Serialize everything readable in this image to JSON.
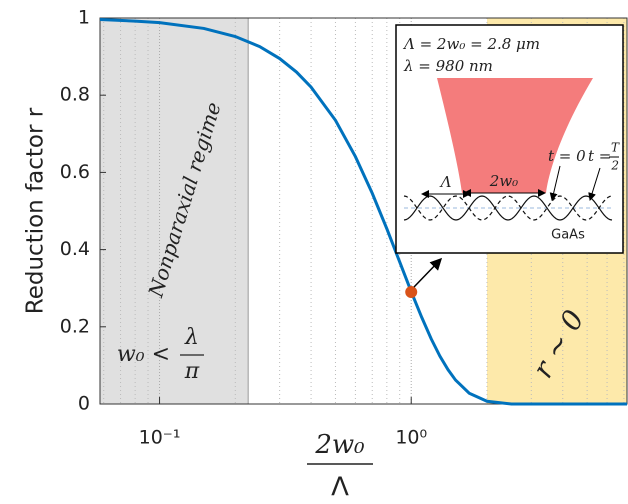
{
  "chart_data": {
    "type": "line",
    "ylabel": "Reduction factor r",
    "xlabel": {
      "numerator": "2w₀",
      "denominator": "Λ"
    },
    "x": [
      0.058,
      0.08,
      0.1,
      0.15,
      0.2,
      0.25,
      0.3,
      0.35,
      0.4,
      0.5,
      0.6,
      0.7,
      0.8,
      0.9,
      1.0,
      1.1,
      1.2,
      1.3,
      1.4,
      1.5,
      1.7,
      2.0,
      2.5,
      3,
      5,
      7.2
    ],
    "series": [
      {
        "color": "#0072bd",
        "values": [
          0.996,
          0.992,
          0.988,
          0.973,
          0.952,
          0.926,
          0.895,
          0.86,
          0.821,
          0.735,
          0.641,
          0.546,
          0.454,
          0.368,
          0.291,
          0.225,
          0.169,
          0.124,
          0.089,
          0.062,
          0.028,
          0.007,
          0,
          0,
          0,
          0
        ]
      }
    ],
    "marker": {
      "x": 1,
      "y": 0.29,
      "color": "#d95319"
    },
    "xscale": "log",
    "xlim": [
      0.058,
      7.2
    ],
    "ylim": [
      0,
      1
    ],
    "xticks": [
      {
        "value": 0.1,
        "label": "10⁻¹"
      },
      {
        "value": 1,
        "label": "10⁰"
      }
    ],
    "xminor": [
      0.06,
      0.07,
      0.08,
      0.09,
      0.2,
      0.3,
      0.4,
      0.5,
      0.6,
      0.7,
      0.8,
      0.9,
      2,
      3,
      4,
      5,
      6,
      7
    ],
    "yticks": [
      0,
      0.2,
      0.4,
      0.6,
      0.8,
      1
    ],
    "grid": true,
    "regions": [
      {
        "xlim": [
          0.058,
          0.225
        ],
        "color": "#e0e0e0",
        "label": "Nonparaxial regime",
        "condition": "w₀ <",
        "frac_num": "λ",
        "frac_den": "π"
      },
      {
        "xlim": [
          2,
          7.2
        ],
        "color": "#fde9aa",
        "label": "r ~ 0"
      }
    ],
    "inset": {
      "line1": "Λ = 2w₀ = 2.8 μm",
      "line2": "λ = 980 nm",
      "period": "Λ",
      "waist": "2w₀",
      "t0": "t = 0",
      "thalf": "t =",
      "thalf_num": "T",
      "thalf_den": "2",
      "substrate": "GaAs"
    }
  }
}
